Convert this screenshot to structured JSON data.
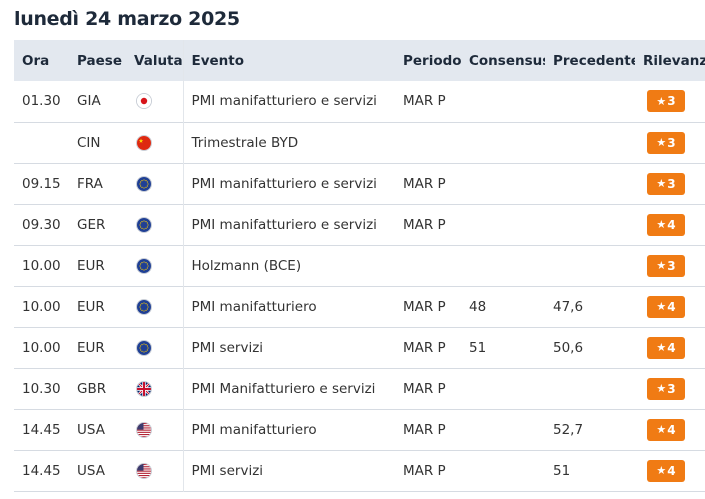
{
  "date_title": "lunedì 24 marzo 2025",
  "headers": {
    "ora": "Ora",
    "paese": "Paese",
    "valuta": "Valuta",
    "evento": "Evento",
    "periodo": "Periodo",
    "consensus": "Consensus",
    "precedente": "Precedente",
    "rilevanza": "Rilevanza"
  },
  "rows": [
    {
      "ora": "01.30",
      "paese": "GIA",
      "flag": "japan-flag-icon",
      "evento": "PMI manifatturiero e servizi",
      "periodo": "MAR P",
      "consensus": "",
      "precedente": "",
      "rilevanza": "3"
    },
    {
      "ora": "",
      "paese": "CIN",
      "flag": "china-flag-icon",
      "evento": "Trimestrale BYD",
      "periodo": "",
      "consensus": "",
      "precedente": "",
      "rilevanza": "3"
    },
    {
      "ora": "09.15",
      "paese": "FRA",
      "flag": "eu-flag-icon",
      "evento": "PMI manifatturiero e servizi",
      "periodo": "MAR P",
      "consensus": "",
      "precedente": "",
      "rilevanza": "3"
    },
    {
      "ora": "09.30",
      "paese": "GER",
      "flag": "eu-flag-icon",
      "evento": "PMI manifatturiero e servizi",
      "periodo": "MAR P",
      "consensus": "",
      "precedente": "",
      "rilevanza": "4"
    },
    {
      "ora": "10.00",
      "paese": "EUR",
      "flag": "eu-flag-icon",
      "evento": "Holzmann (BCE)",
      "periodo": "",
      "consensus": "",
      "precedente": "",
      "rilevanza": "3"
    },
    {
      "ora": "10.00",
      "paese": "EUR",
      "flag": "eu-flag-icon",
      "evento": "PMI manifatturiero",
      "periodo": "MAR P",
      "consensus": "48",
      "precedente": "47,6",
      "rilevanza": "4"
    },
    {
      "ora": "10.00",
      "paese": "EUR",
      "flag": "eu-flag-icon",
      "evento": "PMI servizi",
      "periodo": "MAR P",
      "consensus": "51",
      "precedente": "50,6",
      "rilevanza": "4"
    },
    {
      "ora": "10.30",
      "paese": "GBR",
      "flag": "uk-flag-icon",
      "evento": "PMI Manifatturiero e servizi",
      "periodo": "MAR P",
      "consensus": "",
      "precedente": "",
      "rilevanza": "3"
    },
    {
      "ora": "14.45",
      "paese": "USA",
      "flag": "us-flag-icon",
      "evento": "PMI manifatturiero",
      "periodo": "MAR P",
      "consensus": "",
      "precedente": "52,7",
      "rilevanza": "4"
    },
    {
      "ora": "14.45",
      "paese": "USA",
      "flag": "us-flag-icon",
      "evento": "PMI servizi",
      "periodo": "MAR P",
      "consensus": "",
      "precedente": "51",
      "rilevanza": "4"
    }
  ],
  "colors": {
    "badge": "#f07b14",
    "header_bg": "#e3e8ef"
  }
}
